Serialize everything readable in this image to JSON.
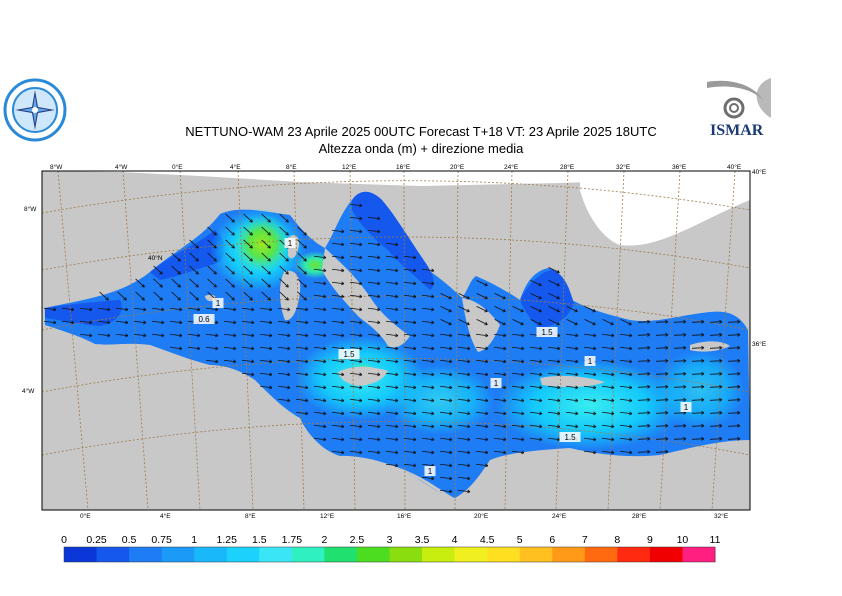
{
  "header": {
    "title": "NETTUNO-WAM  23   Aprile  2025 00UTC Forecast T+18 VT: 23   Aprile  2025 18UTC",
    "subtitle": "Altezza onda (m) + direzione media"
  },
  "logos": {
    "left_icon": "compass-rose-seal",
    "right_icon": "ismar-logo",
    "right_brand_text": "ISMAR"
  },
  "map": {
    "top_lon_labels": [
      "8°W",
      "4°W",
      "0°E",
      "4°E",
      "8°E",
      "12°E",
      "16°E",
      "20°E",
      "24°E",
      "28°E",
      "32°E",
      "36°E",
      "40°E"
    ],
    "bottom_lon_labels": [
      "0°E",
      "4°E",
      "8°E",
      "12°E",
      "16°E",
      "20°E",
      "24°E",
      "28°E",
      "32°E"
    ],
    "left_lat_labels": [
      "8°W",
      "4°W"
    ],
    "right_lat_labels": [
      "40°E",
      "36°E"
    ],
    "inner_lat_label": "40°N",
    "contour_labels": [
      "1",
      "1",
      "0.6",
      "1.5",
      "1",
      "1.5",
      "1",
      "1",
      "1.5",
      "1"
    ],
    "colors": {
      "land": "#c8c8c8",
      "graticule": "#a07a4a",
      "sea_low": "#1560ee",
      "sea_mid": "#00a8ff",
      "sea_high": "#2ce8ff",
      "peak": "#7fe61a"
    }
  },
  "colorbar": {
    "unit_meaning": "significant wave height (m)",
    "labels": [
      "0",
      "0.25",
      "0.5",
      "0.75",
      "1",
      "1.25",
      "1.5",
      "1.75",
      "2",
      "2.5",
      "3",
      "3.5",
      "4",
      "4.5",
      "5",
      "6",
      "7",
      "8",
      "9",
      "10",
      "11"
    ],
    "colors": [
      "#0b37d8",
      "#1458ee",
      "#1e7cf5",
      "#1c9af8",
      "#18b8fb",
      "#1ad2fc",
      "#3ae6f5",
      "#2ff0c0",
      "#20e070",
      "#4cdc20",
      "#8ade10",
      "#c8ee10",
      "#f0f020",
      "#ffe020",
      "#ffc020",
      "#ff9a18",
      "#ff6a10",
      "#ff2a10",
      "#f00000",
      "#ff1f80",
      "#ff30c8"
    ]
  }
}
